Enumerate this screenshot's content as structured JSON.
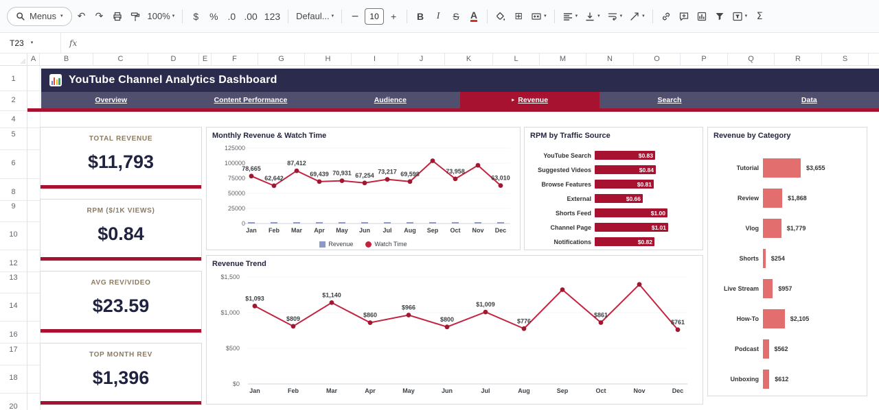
{
  "toolbar": {
    "menus_label": "Menus",
    "zoom_value": "100%",
    "font_value": "Defaul...",
    "font_size_value": "10",
    "glyphs": {
      "undo": "↶",
      "redo": "↷",
      "currency": "$",
      "percent": "%",
      "decrease_decimal": ".0",
      "increase_decimal": ".00",
      "number_format": "123",
      "minus": "−",
      "plus": "+",
      "bold": "B",
      "italic": "I",
      "strikethrough": "S",
      "text_color": "A",
      "borders": "⊞",
      "functions": "Σ",
      "caret": "▾"
    }
  },
  "formula_bar": {
    "cell_ref": "T23",
    "fx": "fx"
  },
  "grid": {
    "columns": [
      "A",
      "B",
      "C",
      "D",
      "E",
      "F",
      "G",
      "H",
      "I",
      "J",
      "K",
      "L",
      "M",
      "N",
      "O",
      "P",
      "Q",
      "R",
      "S"
    ],
    "rows": [
      "1",
      "2",
      "4",
      "5",
      "6",
      "8",
      "9",
      "10",
      "12",
      "13",
      "14",
      "16",
      "17",
      "18",
      "20"
    ]
  },
  "dashboard": {
    "title": "YouTube Channel Analytics Dashboard",
    "active_tab_marker": "▸",
    "tabs": [
      {
        "label": "Overview",
        "active": false
      },
      {
        "label": "Content Performance",
        "active": false
      },
      {
        "label": "Audience",
        "active": false
      },
      {
        "label": "Revenue",
        "active": true
      },
      {
        "label": "Search",
        "active": false
      },
      {
        "label": "Data",
        "active": false
      }
    ],
    "kpis": [
      {
        "label": "TOTAL REVENUE",
        "value": "$11,793"
      },
      {
        "label": "RPM ($/1K VIEWS)",
        "value": "$0.84"
      },
      {
        "label": "AVG REV/VIDEO",
        "value": "$23.59"
      },
      {
        "label": "TOP MONTH REV",
        "value": "$1,396"
      }
    ],
    "colors": {
      "accent_red": "#a6122f",
      "line_red": "#c2233f",
      "marker_red": "#a01830",
      "salmon": "#e26e6e",
      "slate_blue": "#8d99c9",
      "navy": "#2b2b4d",
      "tabbar": "#50506e",
      "value_navy": "#1f2340",
      "kpi_label": "#8b7a60"
    }
  },
  "chart_data": [
    {
      "type": "line",
      "title": "Monthly Revenue & Watch Time",
      "categories": [
        "Jan",
        "Feb",
        "Mar",
        "Apr",
        "May",
        "Jun",
        "Jul",
        "Aug",
        "Sep",
        "Oct",
        "Nov",
        "Dec"
      ],
      "series": [
        {
          "name": "Revenue",
          "type": "bar",
          "values": [
            1093,
            809,
            1140,
            860,
            966,
            800,
            1009,
            776,
            1322,
            861,
            1396,
            761
          ]
        },
        {
          "name": "Watch Time",
          "type": "line",
          "values": [
            78665,
            62642,
            87412,
            69439,
            70931,
            67254,
            73217,
            69598,
            104000,
            73958,
            96500,
            63010
          ]
        }
      ],
      "point_labels": [
        "78,665",
        "62,642",
        "87,412",
        "69,439",
        "70,931",
        "67,254",
        "73,217",
        "69,598",
        "",
        "73,958",
        "",
        "63,010"
      ],
      "ylim": [
        0,
        125000
      ],
      "yticks": [
        "0",
        "25000",
        "50000",
        "75000",
        "100000",
        "125000"
      ],
      "legend_position": "bottom"
    },
    {
      "type": "bar",
      "orientation": "horizontal",
      "title": "RPM by Traffic Source",
      "categories": [
        "YouTube Search",
        "Suggested Videos",
        "Browse Features",
        "External",
        "Shorts Feed",
        "Channel Page",
        "Notifications"
      ],
      "values": [
        0.83,
        0.84,
        0.81,
        0.66,
        1.0,
        1.01,
        0.82
      ],
      "value_labels": [
        "$0.83",
        "$0.84",
        "$0.81",
        "$0.66",
        "$1.00",
        "$1.01",
        "$0.82"
      ],
      "xlim": [
        0,
        1.05
      ]
    },
    {
      "type": "bar",
      "orientation": "horizontal",
      "title": "Revenue by Category",
      "categories": [
        "Tutorial",
        "Review",
        "Vlog",
        "Shorts",
        "Live Stream",
        "How-To",
        "Podcast",
        "Unboxing"
      ],
      "values": [
        3655,
        1868,
        1779,
        254,
        957,
        2105,
        562,
        612
      ],
      "value_labels": [
        "$3,655",
        "$1,868",
        "$1,779",
        "$254",
        "$957",
        "$2,105",
        "$562",
        "$612"
      ],
      "xlim": [
        0,
        3700
      ]
    },
    {
      "type": "line",
      "title": "Revenue Trend",
      "categories": [
        "Jan",
        "Feb",
        "Mar",
        "Apr",
        "May",
        "Jun",
        "Jul",
        "Aug",
        "Sep",
        "Oct",
        "Nov",
        "Dec"
      ],
      "values": [
        1093,
        809,
        1140,
        860,
        966,
        800,
        1009,
        776,
        1322,
        861,
        1396,
        761
      ],
      "point_labels": [
        "$1,093",
        "$809",
        "$1,140",
        "$860",
        "$966",
        "$800",
        "$1,009",
        "$776",
        "",
        "$861",
        "",
        "$761"
      ],
      "ylim": [
        0,
        1500
      ],
      "yticks": [
        "$0",
        "$500",
        "$1,000",
        "$1,500"
      ]
    }
  ]
}
